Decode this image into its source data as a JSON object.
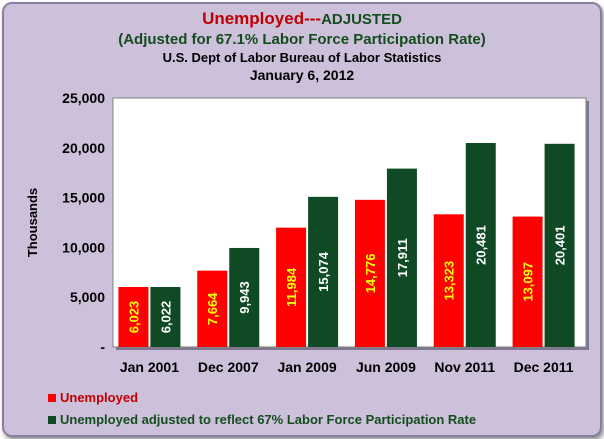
{
  "title": {
    "part1": "Unemployed---",
    "part2": "ADJUSTED",
    "subtitle": "(Adjusted for 67.1% Labor Force Participation Rate)",
    "source": "U.S. Dept of Labor Bureau of Labor Statistics",
    "date": "January 6, 2012"
  },
  "colors": {
    "unemployed": "#ff0000",
    "adjusted": "#0f4a24",
    "background": "#ccc0da",
    "plot_area": "#ffffff"
  },
  "chart_data": {
    "type": "bar",
    "ylabel": "Thousands",
    "ylim": [
      0,
      25000
    ],
    "y_ticks": [
      0,
      5000,
      10000,
      15000,
      20000,
      25000
    ],
    "y_tick_labels": [
      "-",
      "5,000",
      "10,000",
      "15,000",
      "20,000",
      "25,000"
    ],
    "categories": [
      "Jan 2001",
      "Dec 2007",
      "Jan 2009",
      "Jun 2009",
      "Nov 2011",
      "Dec 2011"
    ],
    "series": [
      {
        "name": "Unemployed",
        "values": [
          6023,
          7664,
          11984,
          14776,
          13323,
          13097
        ],
        "labels": [
          "6,023",
          "7,664",
          "11,984",
          "14,776",
          "13,323",
          "13,097"
        ],
        "label_color": "#ffff00"
      },
      {
        "name": "Unemployed adjusted to reflect 67% Labor Force Participation Rate",
        "values": [
          6022,
          9943,
          15074,
          17911,
          20481,
          20401
        ],
        "labels": [
          "6,022",
          "9,943",
          "15,074",
          "17,911",
          "20,481",
          "20,401"
        ],
        "label_color": "#ffffff"
      }
    ],
    "grid": false,
    "legend": "bottom-left"
  }
}
